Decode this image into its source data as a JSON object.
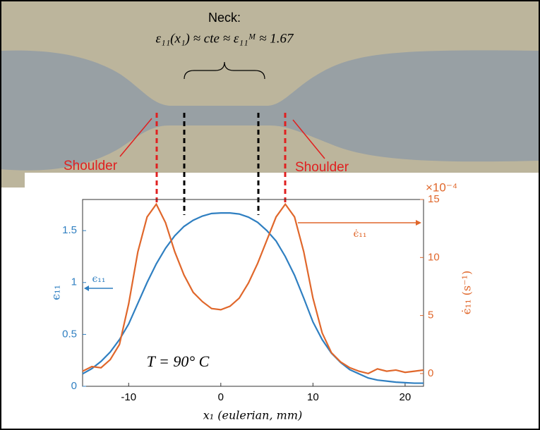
{
  "chart_data": {
    "type": "line",
    "photo_labels": {
      "neck": "Neck:",
      "formula": "ε₁₁(x₁) ≈ cte ≈ ε₁₁ᴹ ≈ 1.67",
      "shoulder_left": "Shoulder",
      "shoulder_right": "Shoulder"
    },
    "annotation": "T = 90° C",
    "series_arrow_labels": [
      "ϵ₁₁",
      "ϵ̇₁₁"
    ],
    "ylabel": "ϵ₁₁",
    "y2label": "ϵ̇₁₁ (s⁻¹)",
    "y2_multiplier": "×10⁻⁴",
    "xlabel": "x₁ (eulerian, mm)",
    "x": [
      -15,
      -14,
      -13,
      -12,
      -11,
      -10,
      -9,
      -8,
      -7,
      -6,
      -5,
      -4,
      -3,
      -2,
      -1,
      0,
      1,
      2,
      3,
      4,
      5,
      6,
      7,
      8,
      9,
      10,
      11,
      12,
      13,
      14,
      15,
      16,
      17,
      18,
      19,
      20,
      21,
      22
    ],
    "series": [
      {
        "name": "ϵ₁₁",
        "color": "#2f7fc1",
        "axis": "y",
        "values": [
          0.12,
          0.17,
          0.24,
          0.33,
          0.45,
          0.6,
          0.8,
          1.0,
          1.18,
          1.33,
          1.45,
          1.54,
          1.6,
          1.64,
          1.665,
          1.67,
          1.67,
          1.66,
          1.63,
          1.58,
          1.5,
          1.4,
          1.25,
          1.07,
          0.85,
          0.62,
          0.45,
          0.32,
          0.23,
          0.16,
          0.12,
          0.08,
          0.06,
          0.05,
          0.04,
          0.035,
          0.03,
          0.03
        ]
      },
      {
        "name": "ϵ̇₁₁",
        "color": "#e0672b",
        "axis": "y2",
        "values": [
          0.2,
          0.6,
          0.5,
          1.2,
          2.5,
          6,
          10.5,
          13.5,
          14.6,
          13,
          10.5,
          8.5,
          7,
          6.2,
          5.6,
          5.5,
          5.8,
          6.5,
          7.8,
          9.5,
          11.5,
          13.5,
          14.6,
          13.5,
          10.5,
          6.5,
          3.5,
          1.8,
          1,
          0.5,
          0.2,
          0,
          0.4,
          0.2,
          0.3,
          0.1,
          0.2,
          0.3
        ]
      }
    ],
    "xlim": [
      -15,
      22
    ],
    "xticks": [
      -10,
      0,
      10,
      20
    ],
    "ylim": [
      0,
      1.8
    ],
    "yticks": [
      0,
      0.5,
      1,
      1.5
    ],
    "y2lim": [
      -1.1,
      15
    ],
    "y2ticks": [
      0,
      5,
      10,
      15
    ]
  }
}
